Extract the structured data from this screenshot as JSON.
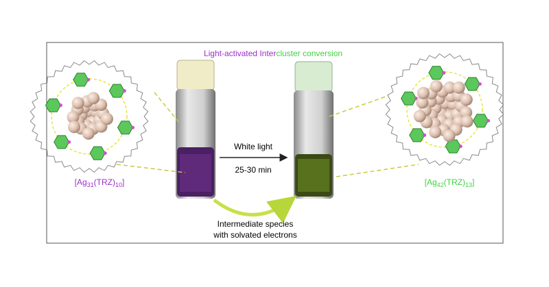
{
  "title": {
    "part1": "Light-activated Inter",
    "part2": "cluster conversion"
  },
  "arrow": {
    "above": "White light",
    "below": "25-30 min"
  },
  "left_label": {
    "open": "[Ag",
    "sub1": "31",
    "mid": "(TRZ)",
    "sub2": "10",
    "close": "]"
  },
  "right_label": {
    "open": "[Ag",
    "sub1": "42",
    "mid": "(TRZ)",
    "sub2": "13",
    "close": "]"
  },
  "intermediate": {
    "line1": "Intermediate species",
    "line2": "with solvated electrons"
  }
}
